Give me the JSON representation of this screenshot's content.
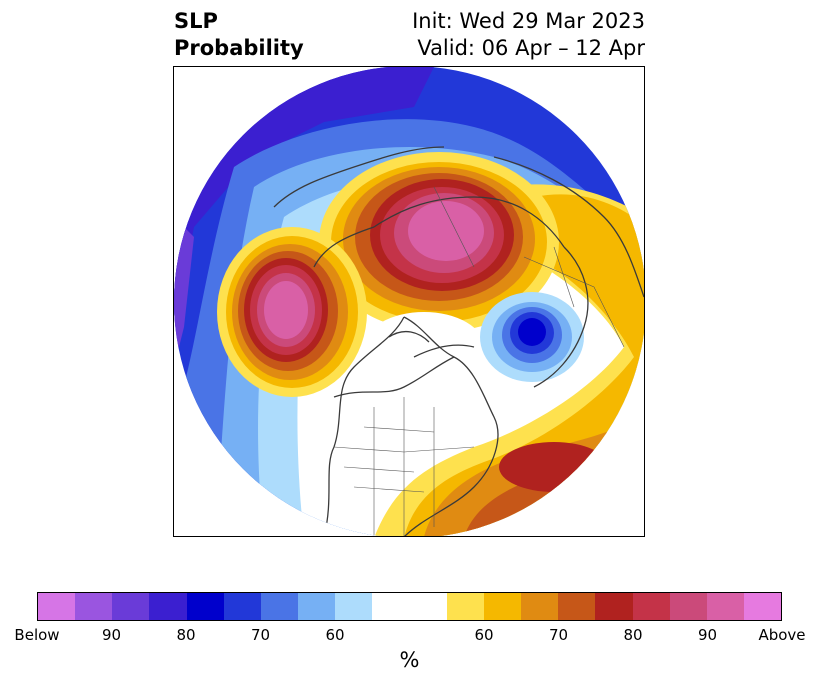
{
  "title": {
    "left_line1": "SLP",
    "left_line2": "Probability",
    "right_line1": "Init: Wed 29 Mar 2023",
    "right_line2": "Valid: 06 Apr – 12 Apr"
  },
  "colorbar": {
    "colors": [
      "#d675e6",
      "#9a55e0",
      "#6a3bd8",
      "#3b1fd0",
      "#0000cc",
      "#2238d8",
      "#4a74e6",
      "#76b0f4",
      "#addcfc",
      "#ffffff",
      "#ffffff",
      "#fee14e",
      "#f5b800",
      "#e08b12",
      "#c65718",
      "#b0221f",
      "#c43348",
      "#cb4a7a",
      "#d960a6",
      "#e67ae0"
    ],
    "ticks": [
      "Below",
      "90",
      "80",
      "70",
      "60",
      "60",
      "70",
      "80",
      "90",
      "Above"
    ],
    "unit": "%"
  }
}
